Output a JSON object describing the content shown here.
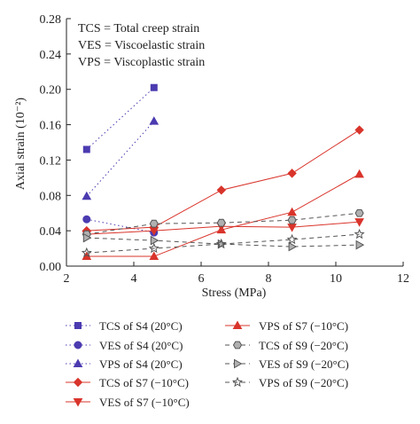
{
  "chart_data": {
    "type": "line",
    "xlabel": "Stress (MPa)",
    "ylabel": "Axial strain (10⁻²)",
    "xlim": [
      2,
      12
    ],
    "ylim": [
      0,
      0.28
    ],
    "x_ticks": [
      2,
      4,
      6,
      8,
      10,
      12
    ],
    "x_tick_labels": [
      "2",
      "4",
      "6",
      "8",
      "10",
      "12"
    ],
    "y_ticks": [
      0,
      0.04,
      0.08,
      0.12,
      0.16,
      0.2,
      0.24,
      0.28
    ],
    "y_tick_labels": [
      "0.00",
      "0.04",
      "0.08",
      "0.12",
      "0.16",
      "0.20",
      "0.24",
      "0.28"
    ],
    "grid": false,
    "annotations": [
      "TCS = Total creep strain",
      "VES = Viscoelastic strain",
      "VPS = Viscoplastic strain"
    ],
    "legend_position": "bottom",
    "series": [
      {
        "name": "TCS of S4 (20°C)",
        "color": "#4b3bb0",
        "marker": "square",
        "dash": "dotted",
        "x": [
          2.6,
          4.6
        ],
        "y": [
          0.132,
          0.202
        ]
      },
      {
        "name": "VES of S4 (20°C)",
        "color": "#4b3bb0",
        "marker": "circle",
        "dash": "dotted",
        "x": [
          2.6,
          4.6
        ],
        "y": [
          0.053,
          0.038
        ]
      },
      {
        "name": "VPS of S4 (20°C)",
        "color": "#4b3bb0",
        "marker": "triangle-up",
        "dash": "dotted",
        "x": [
          2.6,
          4.6
        ],
        "y": [
          0.079,
          0.164
        ]
      },
      {
        "name": "TCS of S7 (−10°C)",
        "color": "#d9342b",
        "marker": "diamond",
        "dash": "solid",
        "x": [
          2.6,
          4.6,
          6.6,
          8.7,
          10.7
        ],
        "y": [
          0.04,
          0.044,
          0.086,
          0.105,
          0.154
        ]
      },
      {
        "name": "VES of S7 (−10°C)",
        "color": "#d9342b",
        "marker": "triangle-down",
        "dash": "solid",
        "x": [
          2.6,
          4.6,
          6.6,
          8.7,
          10.7
        ],
        "y": [
          0.036,
          0.04,
          0.045,
          0.044,
          0.05
        ]
      },
      {
        "name": "VPS of S7 (−10°C)",
        "color": "#d9342b",
        "marker": "triangle-up",
        "dash": "solid",
        "x": [
          2.6,
          4.6,
          6.6,
          8.7,
          10.7
        ],
        "y": [
          0.011,
          0.011,
          0.041,
          0.061,
          0.104
        ]
      },
      {
        "name": "TCS of S9 (−20°C)",
        "color": "#555555",
        "marker": "hexagon",
        "dash": "dashed",
        "x": [
          2.6,
          4.6,
          6.6,
          8.7,
          10.7
        ],
        "y": [
          0.036,
          0.048,
          0.049,
          0.052,
          0.06
        ]
      },
      {
        "name": "VES of S9 (−20°C)",
        "color": "#555555",
        "marker": "triangle-right",
        "dash": "dashed",
        "x": [
          2.6,
          4.6,
          6.6,
          8.7,
          10.7
        ],
        "y": [
          0.032,
          0.029,
          0.025,
          0.022,
          0.024
        ]
      },
      {
        "name": "VPS of S9 (−20°C)",
        "color": "#555555",
        "marker": "star",
        "dash": "dashed",
        "x": [
          2.6,
          4.6,
          6.6,
          8.7,
          10.7
        ],
        "y": [
          0.015,
          0.02,
          0.025,
          0.03,
          0.036
        ]
      }
    ]
  }
}
